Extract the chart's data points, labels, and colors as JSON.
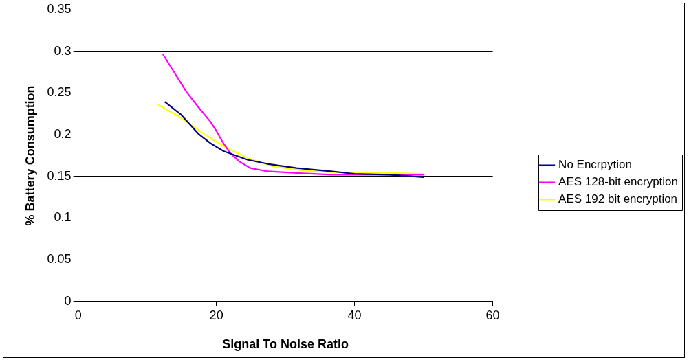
{
  "chart_data": {
    "type": "line",
    "xlabel": "Signal To Noise Ratio",
    "ylabel": "% Battery Consumption",
    "xlim": [
      0,
      60
    ],
    "xticks": [
      0,
      20,
      40,
      60
    ],
    "ylim": [
      0,
      0.35
    ],
    "yticks": [
      0,
      0.05,
      0.1,
      0.15,
      0.2,
      0.25,
      0.3,
      0.35
    ],
    "grid": "y",
    "legend": "right",
    "marker": "none",
    "line_style": "solid",
    "series": [
      {
        "name": "No Encrpytion",
        "color": "#000080",
        "x": [
          12.6,
          14.9,
          17.4,
          19.1,
          21.1,
          24.5,
          27.4,
          31.6,
          36.6,
          40,
          45,
          50
        ],
        "values": [
          0.239,
          0.224,
          0.201,
          0.19,
          0.18,
          0.17,
          0.165,
          0.16,
          0.156,
          0.153,
          0.152,
          0.149
        ]
      },
      {
        "name": "AES 128-bit encryption",
        "color": "#ff00ff",
        "x": [
          12.3,
          15.7,
          17.4,
          19.1,
          19.9,
          21,
          22,
          23.3,
          24.9,
          27.4,
          31.6,
          36.6,
          50
        ],
        "values": [
          0.296,
          0.251,
          0.233,
          0.216,
          0.206,
          0.19,
          0.178,
          0.168,
          0.16,
          0.156,
          0.154,
          0.152,
          0.152
        ]
      },
      {
        "name": "AES 192 bit encryption",
        "color": "#ffff00",
        "x": [
          11.6,
          14.9,
          18.2,
          21.1,
          24.5,
          28.2,
          32.4,
          36.6,
          45,
          50
        ],
        "values": [
          0.236,
          0.22,
          0.201,
          0.186,
          0.172,
          0.162,
          0.157,
          0.155,
          0.154,
          0.153
        ]
      }
    ]
  }
}
